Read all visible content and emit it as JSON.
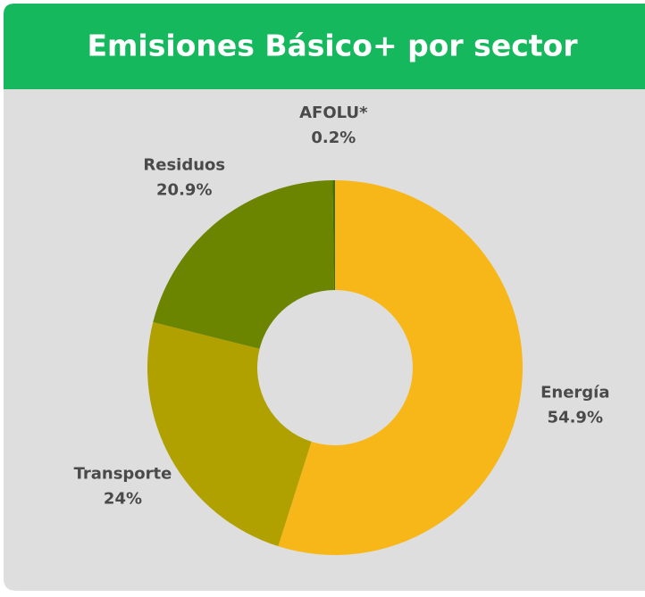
{
  "chart_data": {
    "type": "donut",
    "title": "Emisiones Básico+ por sector",
    "categories": [
      "Energía",
      "Transporte",
      "Residuos",
      "AFOLU*"
    ],
    "values": [
      54.9,
      24,
      20.9,
      0.2
    ],
    "value_labels": [
      "54.9%",
      "24%",
      "20.9%",
      "0.2%"
    ],
    "colors": [
      "#f8b719",
      "#b0a100",
      "#6b8500",
      "#3d6e00"
    ]
  }
}
